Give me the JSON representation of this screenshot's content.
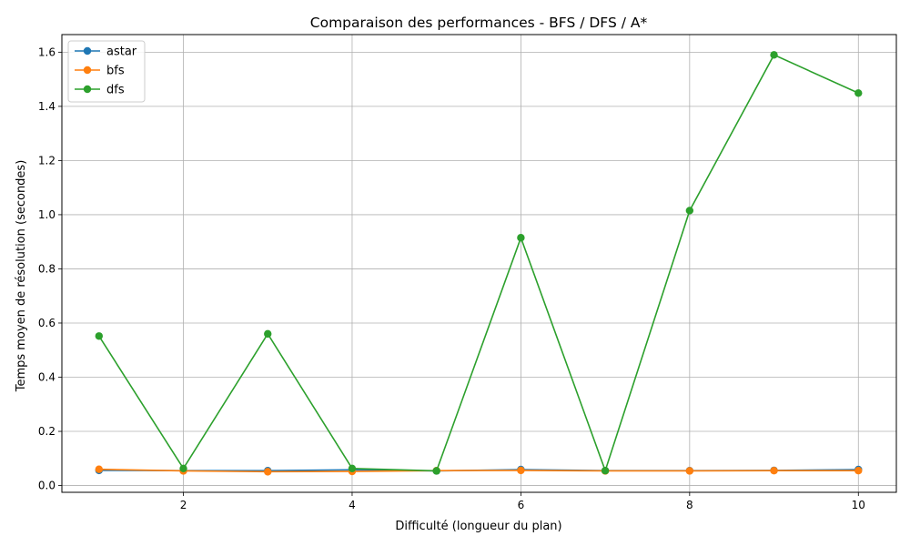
{
  "chart_data": {
    "type": "line",
    "title": "Comparaison des performances - BFS / DFS / A*",
    "xlabel": "Difficulté (longueur du plan)",
    "ylabel": "Temps moyen de résolution (secondes)",
    "xlim": [
      0.56,
      10.45
    ],
    "ylim": [
      -0.025,
      1.665
    ],
    "xticks": [
      2,
      4,
      6,
      8,
      10
    ],
    "yticks": [
      0.0,
      0.2,
      0.4,
      0.6,
      0.8,
      1.0,
      1.2,
      1.4,
      1.6
    ],
    "xtick_labels": [
      "2",
      "4",
      "6",
      "8",
      "10"
    ],
    "ytick_labels": [
      "0.0",
      "0.2",
      "0.4",
      "0.6",
      "0.8",
      "1.0",
      "1.2",
      "1.4",
      "1.6"
    ],
    "grid": true,
    "legend_position": "top-left",
    "x": [
      1,
      2,
      3,
      4,
      5,
      6,
      7,
      8,
      9,
      10
    ],
    "series": [
      {
        "name": "astar",
        "color": "#1f77b4",
        "values": [
          0.056,
          0.055,
          0.055,
          0.058,
          0.054,
          0.059,
          0.055,
          0.055,
          0.056,
          0.059
        ]
      },
      {
        "name": "bfs",
        "color": "#ff7f0e",
        "values": [
          0.06,
          0.054,
          0.051,
          0.052,
          0.055,
          0.056,
          0.054,
          0.054,
          0.055,
          0.055
        ]
      },
      {
        "name": "dfs",
        "color": "#2ca02c",
        "values": [
          0.552,
          0.063,
          0.56,
          0.063,
          0.054,
          0.915,
          0.055,
          1.015,
          1.59,
          1.449
        ]
      }
    ]
  }
}
